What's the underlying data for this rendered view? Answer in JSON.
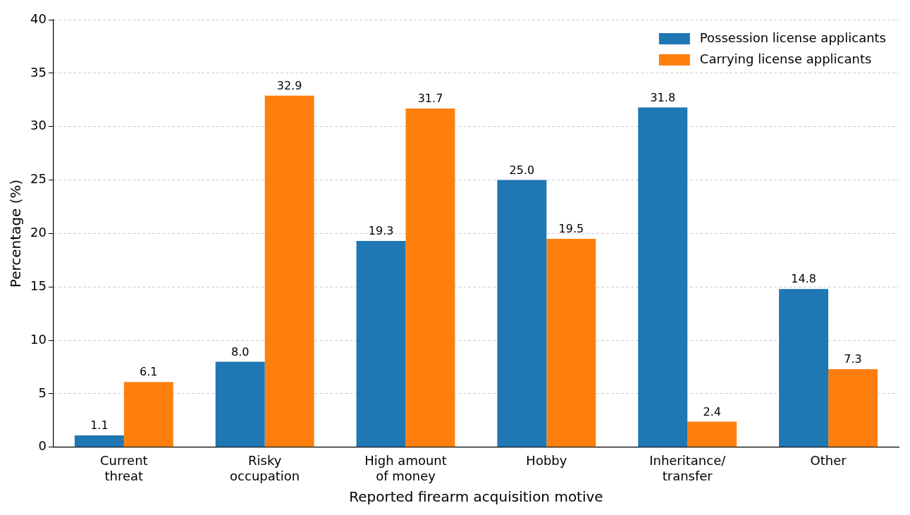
{
  "chart_data": {
    "type": "bar",
    "xlabel": "Reported firearm acquisition motive",
    "ylabel": "Percentage (%)",
    "categories": [
      "Current\nthreat",
      "Risky\noccupation",
      "High amount\nof money",
      "Hobby",
      "Inheritance/\ntransfer",
      "Other"
    ],
    "series": [
      {
        "name": "Possession license applicants",
        "color": "#1f77b4",
        "values": [
          1.1,
          8.0,
          19.3,
          25.0,
          31.8,
          14.8
        ],
        "value_labels": [
          "1.1",
          "8.0",
          "19.3",
          "25.0",
          "31.8",
          "14.8"
        ]
      },
      {
        "name": "Carrying license applicants",
        "color": "#ff7f0e",
        "values": [
          6.1,
          32.9,
          31.7,
          19.5,
          2.4,
          7.3
        ],
        "value_labels": [
          "6.1",
          "32.9",
          "31.7",
          "19.5",
          "2.4",
          "7.3"
        ]
      }
    ],
    "ylim": [
      0,
      40
    ],
    "yticks": [
      0,
      5,
      10,
      15,
      20,
      25,
      30,
      35,
      40
    ],
    "grid": "y",
    "legend": "top right"
  }
}
